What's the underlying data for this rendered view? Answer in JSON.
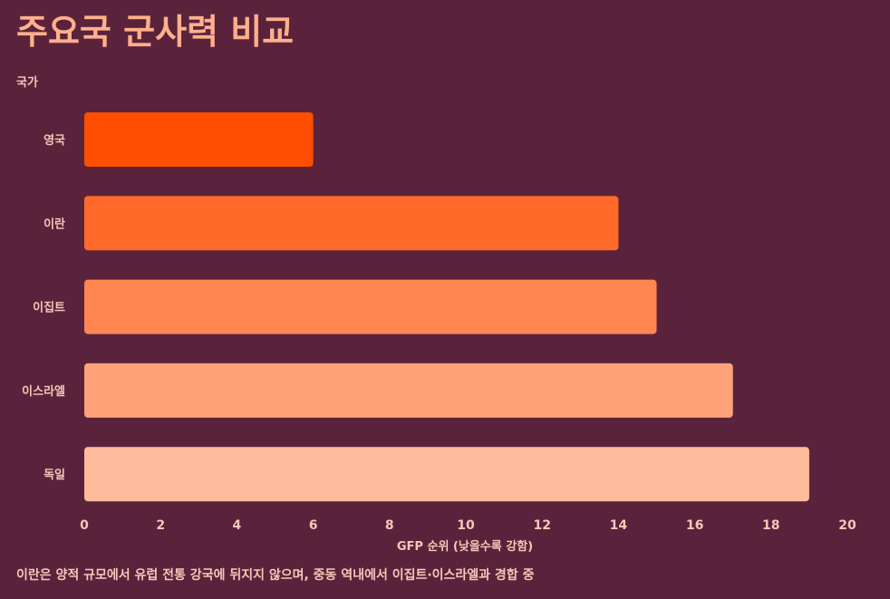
{
  "title": "주요국 군사력 비교",
  "caption": "이란은 양적 규모에서 유럽 전통 강국에 뒤지지 않으며, 중동 역내에서 이집트·이스라엘과 경합 중",
  "chart_data": {
    "type": "bar",
    "orientation": "horizontal",
    "ylabel": "국가",
    "xlabel": "GFP 순위 (낮을수록 강함)",
    "categories": [
      "영국",
      "이란",
      "이집트",
      "이스라엘",
      "독일"
    ],
    "values": [
      6,
      14,
      15,
      17,
      19
    ],
    "colors": [
      "#ff4e00",
      "#ff6a2a",
      "#ff8650",
      "#ffa27a",
      "#ffbc9c"
    ],
    "xlim": [
      0,
      20
    ],
    "xticks": [
      "0",
      "2",
      "4",
      "6",
      "8",
      "10",
      "12",
      "14",
      "16",
      "18",
      "20"
    ],
    "grid": false
  }
}
